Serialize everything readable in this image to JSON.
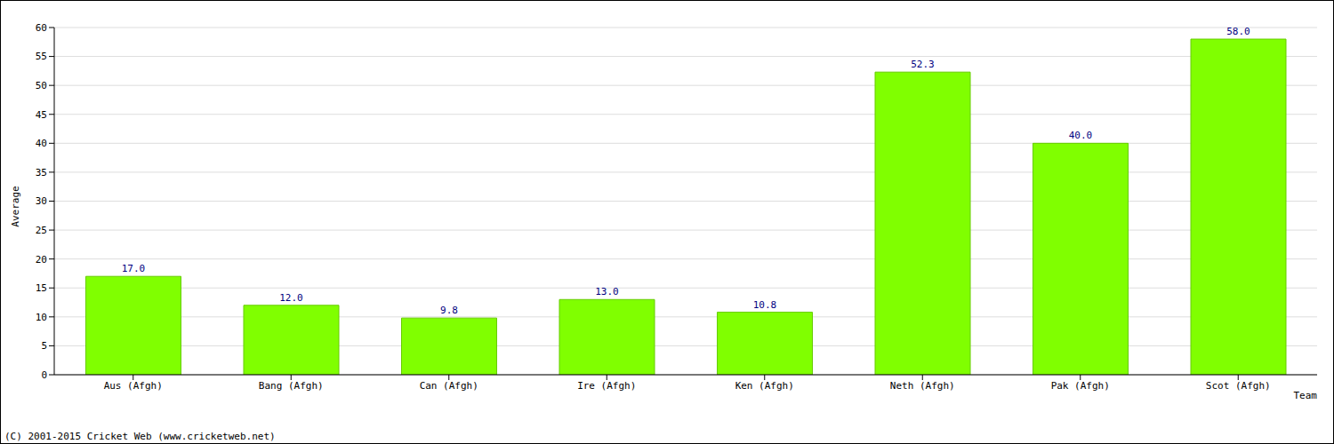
{
  "chart_data": {
    "type": "bar",
    "categories": [
      "Aus (Afgh)",
      "Bang (Afgh)",
      "Can (Afgh)",
      "Ire (Afgh)",
      "Ken (Afgh)",
      "Neth (Afgh)",
      "Pak (Afgh)",
      "Scot (Afgh)"
    ],
    "values": [
      17.0,
      12.0,
      9.8,
      13.0,
      10.8,
      52.3,
      40.0,
      58.0
    ],
    "value_labels": [
      "17.0",
      "12.0",
      "9.8",
      "13.0",
      "10.8",
      "52.3",
      "40.0",
      "58.0"
    ],
    "color": "#80ff00",
    "ylim": [
      0,
      60
    ],
    "yticks": [
      0,
      5,
      10,
      15,
      20,
      25,
      30,
      35,
      40,
      45,
      50,
      55,
      60
    ],
    "grid": true,
    "data_labels": true,
    "x_label": "Team",
    "y_label": "Average",
    "annotation": "(C) 2001-2015 Cricket Web (www.cricketweb.net)"
  }
}
